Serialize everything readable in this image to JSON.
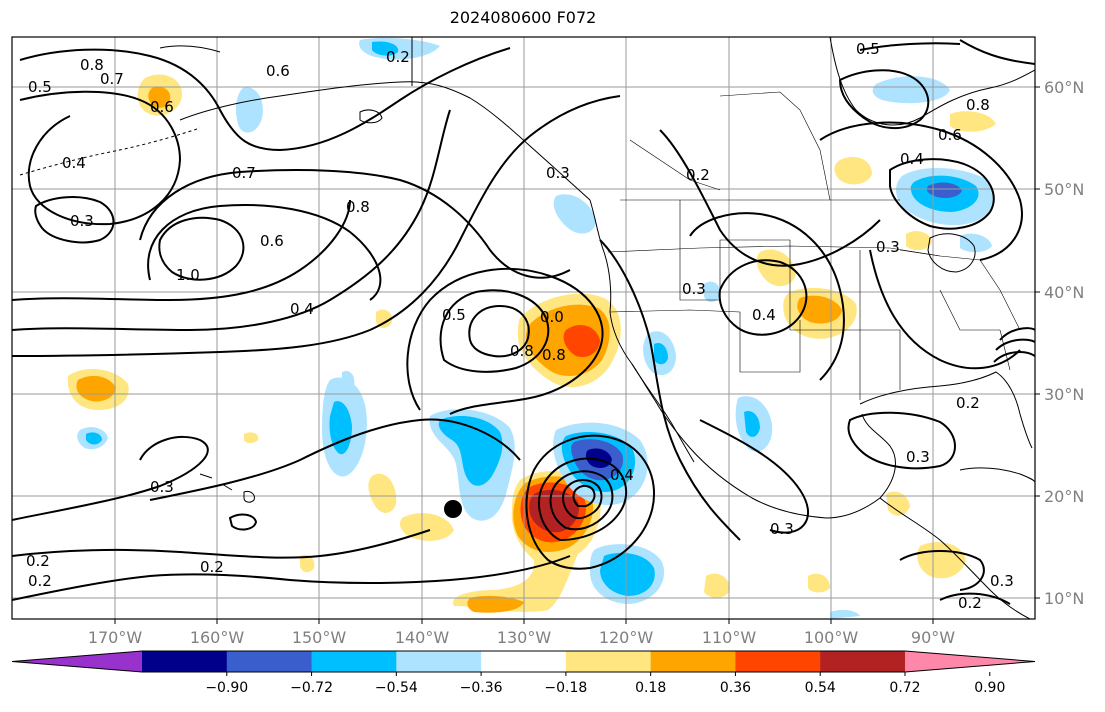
{
  "title": "2024080600 F072",
  "lat_labels": [
    "60°N",
    "50°N",
    "40°N",
    "30°N",
    "20°N",
    "10°N"
  ],
  "lon_labels": [
    "170°W",
    "160°W",
    "150°W",
    "140°W",
    "130°W",
    "120°W",
    "110°W",
    "100°W",
    "90°W"
  ],
  "colorbar": {
    "ticks": [
      "−0.90",
      "−0.72",
      "−0.54",
      "−0.36",
      "−0.18",
      "0.18",
      "0.36",
      "0.54",
      "0.72",
      "0.90"
    ],
    "colors": [
      "#9932cc",
      "#00008b",
      "#3a5fcd",
      "#00bfff",
      "#aee3ff",
      "#ffffff",
      "#ffe680",
      "#ffa500",
      "#ff4500",
      "#b22222",
      "#ff88aa"
    ]
  },
  "contour_labels": [
    "0.6",
    "0.8",
    "0.7",
    "0.5",
    "0.4",
    "0.3",
    "0.6",
    "0.7",
    "0.8",
    "0.6",
    "1.0",
    "0.4",
    "0.2",
    "0.3",
    "0.5",
    "0.8",
    "0.8",
    "0.0",
    "0.3",
    "0.2",
    "0.2",
    "0.2",
    "0.2",
    "0.4",
    "0.3",
    "0.5",
    "0.6",
    "0.8",
    "0.4",
    "0.3",
    "0.3",
    "0.2",
    "0.3",
    "0.3",
    "0.4",
    "0.2"
  ],
  "marker": {
    "name": "storm-center-marker"
  }
}
